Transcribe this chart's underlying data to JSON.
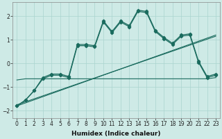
{
  "xlabel": "Humidex (Indice chaleur)",
  "ylabel": "",
  "xlim": [
    -0.5,
    23.5
  ],
  "ylim": [
    -2.3,
    2.6
  ],
  "background_color": "#ceeae6",
  "grid_color": "#aad4cf",
  "line_color": "#1a6b5e",
  "x_ticks": [
    0,
    1,
    2,
    3,
    4,
    5,
    6,
    7,
    8,
    9,
    10,
    11,
    12,
    13,
    14,
    15,
    16,
    17,
    18,
    19,
    20,
    21,
    22,
    23
  ],
  "y_ticks": [
    -2,
    -1,
    0,
    1,
    2
  ],
  "series_main_x": [
    0,
    1,
    2,
    3,
    4,
    5,
    6,
    7,
    8,
    9,
    10,
    11,
    12,
    13,
    14,
    15,
    16,
    17,
    18,
    19,
    20,
    21,
    22,
    23
  ],
  "series_main_y": [
    -1.8,
    -1.55,
    -1.15,
    -0.65,
    -0.5,
    -0.5,
    -0.6,
    0.75,
    0.75,
    0.7,
    1.75,
    1.3,
    1.75,
    1.55,
    2.2,
    2.15,
    1.35,
    1.05,
    0.8,
    1.15,
    1.2,
    0.05,
    -0.6,
    -0.5
  ],
  "series_offset_x": [
    0,
    1,
    2,
    3,
    4,
    5,
    6,
    7,
    8,
    9,
    10,
    11,
    12,
    13,
    14,
    15,
    16,
    17,
    18,
    19,
    20,
    21,
    22,
    23
  ],
  "series_offset_y": [
    -1.8,
    -1.55,
    -1.15,
    -0.6,
    -0.45,
    -0.45,
    -0.55,
    0.8,
    0.8,
    0.75,
    1.8,
    1.35,
    1.8,
    1.6,
    2.25,
    2.2,
    1.4,
    1.1,
    0.85,
    1.2,
    1.25,
    0.1,
    -0.55,
    -0.45
  ],
  "trend1_x": [
    0,
    23
  ],
  "trend1_y": [
    -1.8,
    1.2
  ],
  "trend2_x": [
    0,
    23
  ],
  "trend2_y": [
    -1.75,
    1.15
  ],
  "flat_x": [
    0,
    1,
    2,
    3,
    4,
    5,
    6,
    7,
    8,
    9,
    10,
    11,
    12,
    13,
    14,
    15,
    16,
    17,
    18,
    19,
    20,
    21,
    22,
    23
  ],
  "flat_y": [
    -0.7,
    -0.65,
    -0.65,
    -0.65,
    -0.65,
    -0.65,
    -0.65,
    -0.65,
    -0.65,
    -0.65,
    -0.65,
    -0.65,
    -0.65,
    -0.65,
    -0.65,
    -0.65,
    -0.65,
    -0.65,
    -0.65,
    -0.65,
    -0.65,
    -0.65,
    -0.65,
    -0.6
  ]
}
